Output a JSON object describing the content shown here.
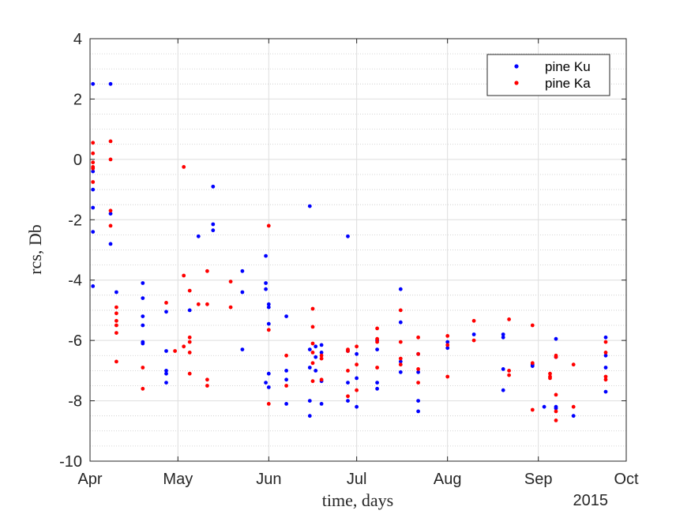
{
  "chart_data": {
    "type": "scatter",
    "xlabel": "time, days",
    "ylabel": "rcs, Db",
    "x_tick_labels": [
      "Apr",
      "May",
      "Jun",
      "Jul",
      "Aug",
      "Sep",
      "Oct"
    ],
    "x_tick_dates": [
      "2015-04-01",
      "2015-05-01",
      "2015-06-01",
      "2015-07-01",
      "2015-08-01",
      "2015-09-01",
      "2015-10-01"
    ],
    "x_year_label": "2015",
    "xlim": [
      "2015-04-01",
      "2015-10-01"
    ],
    "ylim": [
      -10,
      4
    ],
    "y_ticks": [
      -10,
      -8,
      -6,
      -4,
      -2,
      0,
      2,
      4
    ],
    "y_tick_labels": [
      "-10",
      "-8",
      "-6",
      "-4",
      "-2",
      "0",
      "2",
      "4"
    ],
    "grid": true,
    "minor_grid": true,
    "legend_position": "top-right",
    "series": [
      {
        "name": "pine Ku",
        "color": "#0000ff",
        "points": [
          [
            "2015-04-02",
            2.5
          ],
          [
            "2015-04-02",
            -0.4
          ],
          [
            "2015-04-02",
            -1.0
          ],
          [
            "2015-04-02",
            -1.6
          ],
          [
            "2015-04-02",
            -2.4
          ],
          [
            "2015-04-02",
            -4.2
          ],
          [
            "2015-04-08",
            2.5
          ],
          [
            "2015-04-08",
            -1.8
          ],
          [
            "2015-04-08",
            -2.8
          ],
          [
            "2015-04-10",
            -4.4
          ],
          [
            "2015-04-19",
            -4.1
          ],
          [
            "2015-04-19",
            -4.6
          ],
          [
            "2015-04-19",
            -5.2
          ],
          [
            "2015-04-19",
            -5.5
          ],
          [
            "2015-04-19",
            -6.1
          ],
          [
            "2015-04-19",
            -6.05
          ],
          [
            "2015-04-27",
            -5.05
          ],
          [
            "2015-04-27",
            -6.35
          ],
          [
            "2015-04-27",
            -7.0
          ],
          [
            "2015-04-27",
            -7.1
          ],
          [
            "2015-04-27",
            -7.4
          ],
          [
            "2015-05-05",
            -5.0
          ],
          [
            "2015-05-08",
            -2.55
          ],
          [
            "2015-05-13",
            -0.9
          ],
          [
            "2015-05-13",
            -2.15
          ],
          [
            "2015-05-13",
            -2.35
          ],
          [
            "2015-05-23",
            -3.7
          ],
          [
            "2015-05-23",
            -4.4
          ],
          [
            "2015-05-23",
            -6.3
          ],
          [
            "2015-05-31",
            -3.2
          ],
          [
            "2015-05-31",
            -4.1
          ],
          [
            "2015-05-31",
            -4.3
          ],
          [
            "2015-05-31",
            -7.4
          ],
          [
            "2015-06-01",
            -4.8
          ],
          [
            "2015-06-01",
            -4.9
          ],
          [
            "2015-06-01",
            -5.45
          ],
          [
            "2015-06-01",
            -7.1
          ],
          [
            "2015-06-01",
            -7.55
          ],
          [
            "2015-06-07",
            -5.2
          ],
          [
            "2015-06-07",
            -7.0
          ],
          [
            "2015-06-07",
            -7.3
          ],
          [
            "2015-06-07",
            -8.1
          ],
          [
            "2015-06-15",
            -1.55
          ],
          [
            "2015-06-15",
            -6.3
          ],
          [
            "2015-06-15",
            -6.9
          ],
          [
            "2015-06-15",
            -8.0
          ],
          [
            "2015-06-15",
            -8.5
          ],
          [
            "2015-06-17",
            -6.2
          ],
          [
            "2015-06-17",
            -6.55
          ],
          [
            "2015-06-17",
            -7.0
          ],
          [
            "2015-06-19",
            -6.15
          ],
          [
            "2015-06-19",
            -6.4
          ],
          [
            "2015-06-19",
            -7.35
          ],
          [
            "2015-06-19",
            -8.1
          ],
          [
            "2015-06-28",
            -2.55
          ],
          [
            "2015-06-28",
            -6.35
          ],
          [
            "2015-06-28",
            -7.4
          ],
          [
            "2015-06-28",
            -8.0
          ],
          [
            "2015-07-01",
            -6.45
          ],
          [
            "2015-07-01",
            -7.25
          ],
          [
            "2015-07-01",
            -8.2
          ],
          [
            "2015-07-08",
            -6.0
          ],
          [
            "2015-07-08",
            -6.3
          ],
          [
            "2015-07-08",
            -7.4
          ],
          [
            "2015-07-08",
            -7.6
          ],
          [
            "2015-07-16",
            -4.3
          ],
          [
            "2015-07-16",
            -5.4
          ],
          [
            "2015-07-16",
            -6.7
          ],
          [
            "2015-07-16",
            -7.05
          ],
          [
            "2015-07-22",
            -6.45
          ],
          [
            "2015-07-22",
            -7.05
          ],
          [
            "2015-07-22",
            -8.0
          ],
          [
            "2015-07-22",
            -8.35
          ],
          [
            "2015-08-01",
            -6.05
          ],
          [
            "2015-08-01",
            -6.25
          ],
          [
            "2015-08-10",
            -5.8
          ],
          [
            "2015-08-20",
            -5.8
          ],
          [
            "2015-08-20",
            -5.9
          ],
          [
            "2015-08-20",
            -6.95
          ],
          [
            "2015-08-20",
            -7.65
          ],
          [
            "2015-08-30",
            -6.8
          ],
          [
            "2015-08-30",
            -6.85
          ],
          [
            "2015-09-03",
            -8.2
          ],
          [
            "2015-09-07",
            -5.95
          ],
          [
            "2015-09-07",
            -6.55
          ],
          [
            "2015-09-07",
            -8.2
          ],
          [
            "2015-09-07",
            -8.25
          ],
          [
            "2015-09-13",
            -8.5
          ],
          [
            "2015-09-24",
            -5.9
          ],
          [
            "2015-09-24",
            -6.5
          ],
          [
            "2015-09-24",
            -6.9
          ],
          [
            "2015-09-24",
            -7.7
          ]
        ]
      },
      {
        "name": "pine Ka",
        "color": "#ff0000",
        "points": [
          [
            "2015-04-02",
            0.55
          ],
          [
            "2015-04-02",
            0.2
          ],
          [
            "2015-04-02",
            -0.1
          ],
          [
            "2015-04-02",
            -0.25
          ],
          [
            "2015-04-02",
            -0.3
          ],
          [
            "2015-04-02",
            -0.75
          ],
          [
            "2015-04-08",
            0.6
          ],
          [
            "2015-04-08",
            0.0
          ],
          [
            "2015-04-08",
            -1.7
          ],
          [
            "2015-04-08",
            -2.2
          ],
          [
            "2015-04-10",
            -4.9
          ],
          [
            "2015-04-10",
            -5.1
          ],
          [
            "2015-04-10",
            -5.35
          ],
          [
            "2015-04-10",
            -5.5
          ],
          [
            "2015-04-10",
            -5.75
          ],
          [
            "2015-04-10",
            -6.7
          ],
          [
            "2015-04-19",
            -6.9
          ],
          [
            "2015-04-19",
            -7.6
          ],
          [
            "2015-04-27",
            -4.75
          ],
          [
            "2015-04-30",
            -6.35
          ],
          [
            "2015-05-03",
            -0.25
          ],
          [
            "2015-05-03",
            -3.85
          ],
          [
            "2015-05-03",
            -6.2
          ],
          [
            "2015-05-05",
            -4.35
          ],
          [
            "2015-05-05",
            -5.9
          ],
          [
            "2015-05-05",
            -6.05
          ],
          [
            "2015-05-05",
            -6.4
          ],
          [
            "2015-05-05",
            -7.1
          ],
          [
            "2015-05-08",
            -4.8
          ],
          [
            "2015-05-11",
            -3.7
          ],
          [
            "2015-05-11",
            -4.8
          ],
          [
            "2015-05-11",
            -7.3
          ],
          [
            "2015-05-11",
            -7.5
          ],
          [
            "2015-05-19",
            -4.05
          ],
          [
            "2015-05-19",
            -4.9
          ],
          [
            "2015-06-01",
            -2.2
          ],
          [
            "2015-06-01",
            -5.65
          ],
          [
            "2015-06-01",
            -8.1
          ],
          [
            "2015-06-07",
            -6.5
          ],
          [
            "2015-06-07",
            -7.5
          ],
          [
            "2015-06-16",
            -4.95
          ],
          [
            "2015-06-16",
            -5.55
          ],
          [
            "2015-06-16",
            -6.1
          ],
          [
            "2015-06-16",
            -6.4
          ],
          [
            "2015-06-16",
            -6.75
          ],
          [
            "2015-06-16",
            -7.35
          ],
          [
            "2015-06-19",
            -6.5
          ],
          [
            "2015-06-19",
            -6.6
          ],
          [
            "2015-06-19",
            -7.3
          ],
          [
            "2015-06-28",
            -6.3
          ],
          [
            "2015-06-28",
            -6.35
          ],
          [
            "2015-06-28",
            -7.0
          ],
          [
            "2015-06-28",
            -7.85
          ],
          [
            "2015-07-01",
            -6.2
          ],
          [
            "2015-07-01",
            -6.8
          ],
          [
            "2015-07-01",
            -7.65
          ],
          [
            "2015-07-08",
            -5.6
          ],
          [
            "2015-07-08",
            -5.95
          ],
          [
            "2015-07-08",
            -6.05
          ],
          [
            "2015-07-08",
            -6.9
          ],
          [
            "2015-07-16",
            -5.0
          ],
          [
            "2015-07-16",
            -6.05
          ],
          [
            "2015-07-16",
            -6.6
          ],
          [
            "2015-07-16",
            -6.8
          ],
          [
            "2015-07-22",
            -5.9
          ],
          [
            "2015-07-22",
            -6.45
          ],
          [
            "2015-07-22",
            -6.95
          ],
          [
            "2015-07-22",
            -7.4
          ],
          [
            "2015-08-01",
            -5.85
          ],
          [
            "2015-08-01",
            -6.15
          ],
          [
            "2015-08-01",
            -7.2
          ],
          [
            "2015-08-10",
            -5.35
          ],
          [
            "2015-08-10",
            -6.0
          ],
          [
            "2015-08-22",
            -5.3
          ],
          [
            "2015-08-22",
            -7.0
          ],
          [
            "2015-08-22",
            -7.15
          ],
          [
            "2015-08-30",
            -5.5
          ],
          [
            "2015-08-30",
            -6.75
          ],
          [
            "2015-08-30",
            -8.3
          ],
          [
            "2015-09-05",
            -7.1
          ],
          [
            "2015-09-05",
            -7.2
          ],
          [
            "2015-09-05",
            -7.25
          ],
          [
            "2015-09-07",
            -6.5
          ],
          [
            "2015-09-07",
            -6.55
          ],
          [
            "2015-09-07",
            -7.8
          ],
          [
            "2015-09-07",
            -8.35
          ],
          [
            "2015-09-07",
            -8.65
          ],
          [
            "2015-09-13",
            -6.8
          ],
          [
            "2015-09-13",
            -8.2
          ],
          [
            "2015-09-24",
            -6.05
          ],
          [
            "2015-09-24",
            -6.4
          ],
          [
            "2015-09-24",
            -7.2
          ],
          [
            "2015-09-24",
            -7.3
          ]
        ]
      }
    ]
  }
}
